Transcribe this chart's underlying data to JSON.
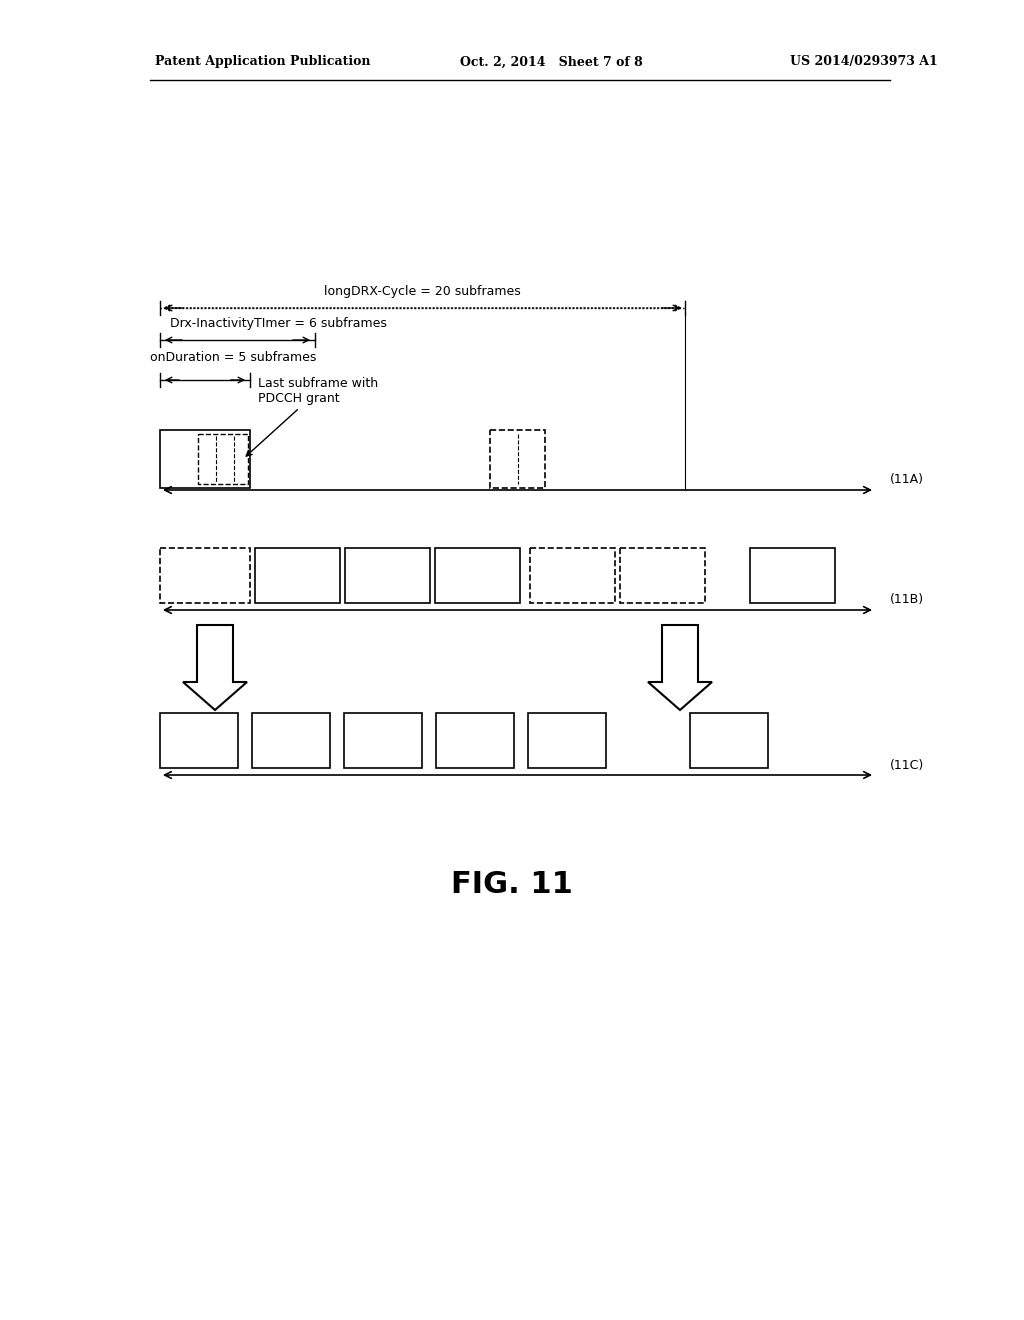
{
  "header_left": "Patent Application Publication",
  "header_mid": "Oct. 2, 2014   Sheet 7 of 8",
  "header_right": "US 2014/0293973 A1",
  "fig_label": "FIG. 11",
  "label_11A": "(11A)",
  "label_11B": "(11B)",
  "label_11C": "(11C)",
  "text_longDRX": "longDRX-Cycle = 20 subframes",
  "text_drxInactivity": "Drx-InactivityTImer = 6 subframes",
  "text_onDuration": "onDuration = 5 subframes",
  "text_lastSubframe": "Last subframe with\nPDCCH grant",
  "background_color": "#ffffff",
  "line_color": "#000000"
}
